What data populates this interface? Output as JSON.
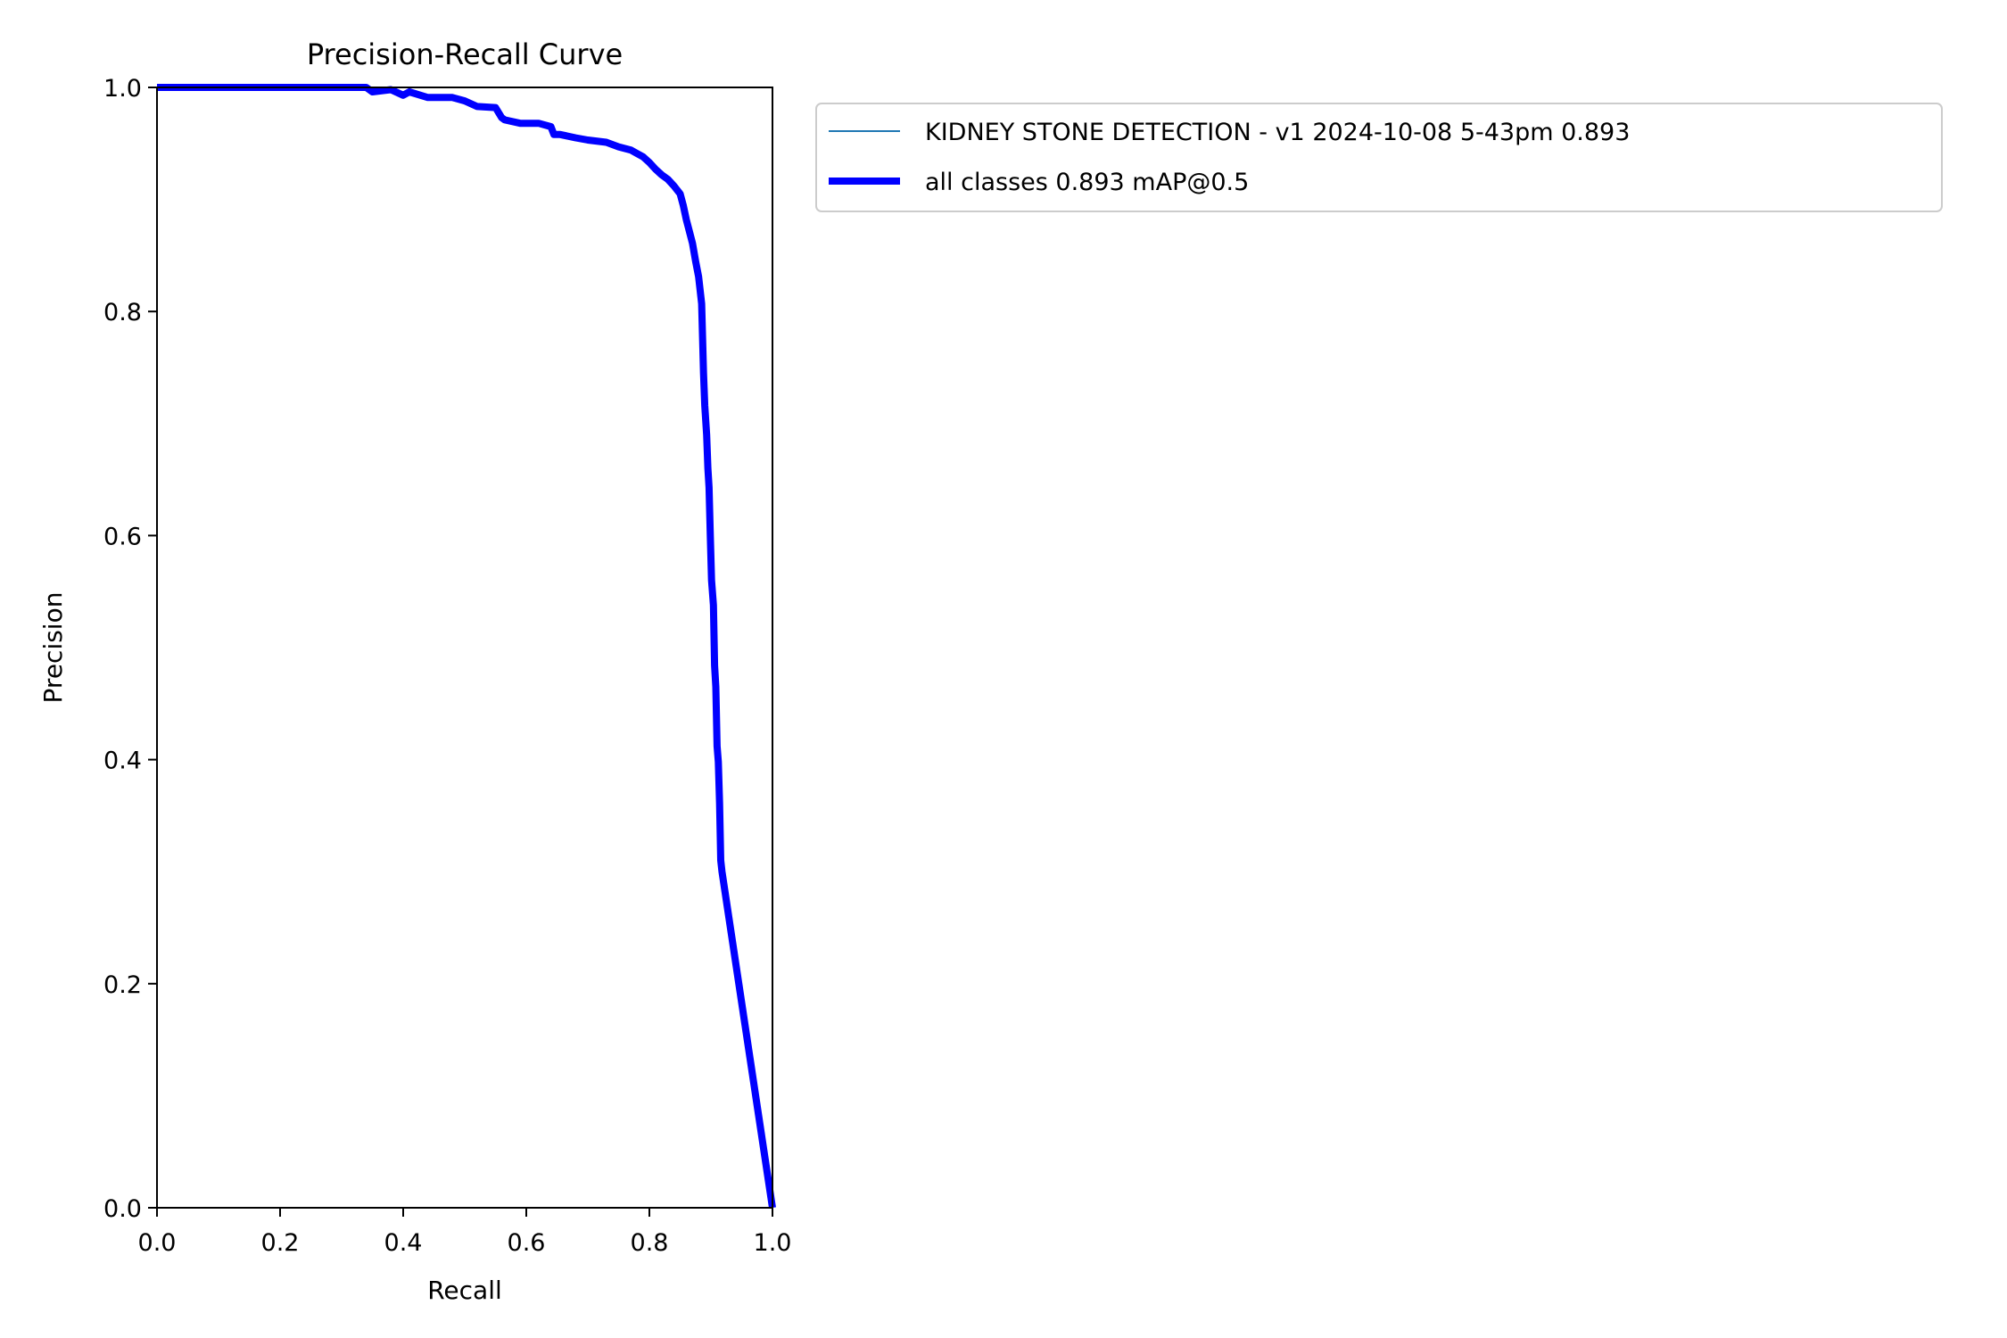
{
  "chart_data": {
    "type": "line",
    "title": "Precision-Recall Curve",
    "xlabel": "Recall",
    "ylabel": "Precision",
    "xlim": [
      0,
      1
    ],
    "ylim": [
      0,
      1
    ],
    "xticks": [
      "0.0",
      "0.2",
      "0.4",
      "0.6",
      "0.8",
      "1.0"
    ],
    "yticks": [
      "0.0",
      "0.2",
      "0.4",
      "0.6",
      "0.8",
      "1.0"
    ],
    "grid": false,
    "legend_position": "outside-upper-right",
    "series": [
      {
        "name": "KIDNEY STONE DETECTION - v1 2024-10-08 5-43pm 0.893",
        "color": "#1f77b4",
        "style": "thin",
        "x": [
          0,
          0.34,
          0.35,
          0.38,
          0.4,
          0.41,
          0.44,
          0.48,
          0.5,
          0.52,
          0.55,
          0.56,
          0.565,
          0.59,
          0.62,
          0.64,
          0.645,
          0.655,
          0.68,
          0.7,
          0.73,
          0.75,
          0.77,
          0.78,
          0.79,
          0.8,
          0.81,
          0.82,
          0.83,
          0.84,
          0.85,
          0.855,
          0.86,
          0.87,
          0.875,
          0.88,
          0.885,
          0.888,
          0.89,
          0.893,
          0.895,
          0.897,
          0.899,
          0.901,
          0.904,
          0.906,
          0.908,
          0.91,
          0.912,
          0.914,
          0.916,
          0.918,
          1.0
        ],
        "y": [
          1.0,
          1.0,
          0.996,
          0.998,
          0.993,
          0.996,
          0.991,
          0.991,
          0.988,
          0.983,
          0.982,
          0.973,
          0.971,
          0.968,
          0.968,
          0.965,
          0.958,
          0.958,
          0.955,
          0.953,
          0.951,
          0.947,
          0.944,
          0.941,
          0.938,
          0.933,
          0.927,
          0.922,
          0.918,
          0.912,
          0.905,
          0.895,
          0.882,
          0.861,
          0.845,
          0.831,
          0.807,
          0.745,
          0.716,
          0.69,
          0.66,
          0.643,
          0.6,
          0.56,
          0.538,
          0.484,
          0.465,
          0.412,
          0.398,
          0.361,
          0.31,
          0.3,
          0.0
        ]
      },
      {
        "name": "all classes 0.893 mAP@0.5",
        "color": "#0000ff",
        "style": "thick",
        "x": [
          0,
          0.34,
          0.35,
          0.38,
          0.4,
          0.41,
          0.44,
          0.48,
          0.5,
          0.52,
          0.55,
          0.56,
          0.565,
          0.59,
          0.62,
          0.64,
          0.645,
          0.655,
          0.68,
          0.7,
          0.73,
          0.75,
          0.77,
          0.78,
          0.79,
          0.8,
          0.81,
          0.82,
          0.83,
          0.84,
          0.85,
          0.855,
          0.86,
          0.87,
          0.875,
          0.88,
          0.885,
          0.888,
          0.89,
          0.893,
          0.895,
          0.897,
          0.899,
          0.901,
          0.904,
          0.906,
          0.908,
          0.91,
          0.912,
          0.914,
          0.916,
          0.918,
          1.0
        ],
        "y": [
          1.0,
          1.0,
          0.996,
          0.998,
          0.993,
          0.996,
          0.991,
          0.991,
          0.988,
          0.983,
          0.982,
          0.973,
          0.971,
          0.968,
          0.968,
          0.965,
          0.958,
          0.958,
          0.955,
          0.953,
          0.951,
          0.947,
          0.944,
          0.941,
          0.938,
          0.933,
          0.927,
          0.922,
          0.918,
          0.912,
          0.905,
          0.895,
          0.882,
          0.861,
          0.845,
          0.831,
          0.807,
          0.745,
          0.716,
          0.69,
          0.66,
          0.643,
          0.6,
          0.56,
          0.538,
          0.484,
          0.465,
          0.412,
          0.398,
          0.361,
          0.31,
          0.3,
          0.0
        ]
      }
    ]
  }
}
